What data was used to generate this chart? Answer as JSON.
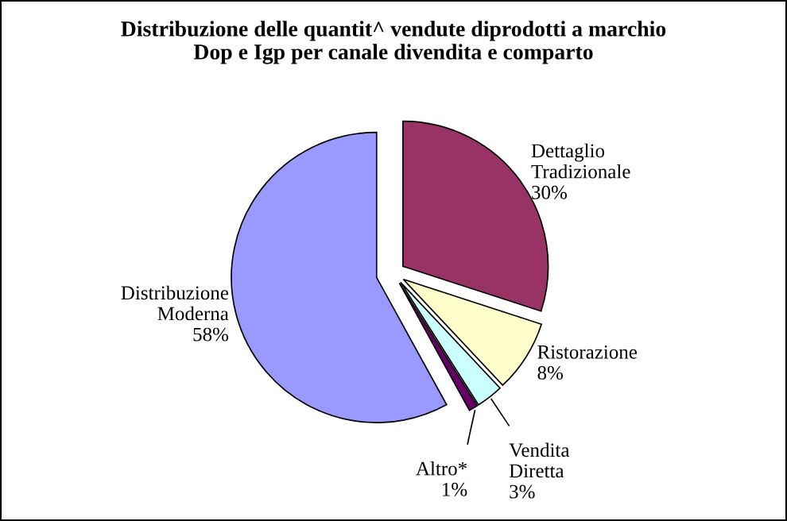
{
  "chart_data": {
    "type": "pie",
    "title": "Distribuzione delle quantit^ vendute diprodotti a marchio\nDop e Igp per canale divendita e comparto",
    "categories": [
      "Dettaglio Tradizionale",
      "Ristorazione",
      "Vendita Diretta",
      "Altro*",
      "Distribuzione Moderna"
    ],
    "values": [
      30,
      8,
      3,
      1,
      58
    ],
    "value_labels": [
      "30%",
      "8%",
      "3%",
      "1%",
      "58%"
    ],
    "colors": [
      "#993366",
      "#ffffcc",
      "#ccffff",
      "#660066",
      "#9999ff"
    ]
  }
}
